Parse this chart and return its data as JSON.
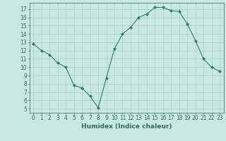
{
  "x": [
    0,
    1,
    2,
    3,
    4,
    5,
    6,
    7,
    8,
    9,
    10,
    11,
    12,
    13,
    14,
    15,
    16,
    17,
    18,
    19,
    20,
    21,
    22,
    23
  ],
  "y": [
    12.8,
    12.0,
    11.5,
    10.5,
    10.0,
    7.8,
    7.5,
    6.5,
    5.1,
    8.7,
    12.2,
    14.0,
    14.8,
    16.0,
    16.4,
    17.2,
    17.2,
    16.8,
    16.7,
    15.2,
    13.2,
    11.0,
    10.0,
    9.5
  ],
  "line_color": "#2d7d6e",
  "marker": "D",
  "marker_size": 2.0,
  "bg_color": "#c8e8e4",
  "grid_color": "#a8ccc8",
  "xlabel": "Humidex (Indice chaleur)",
  "xlim": [
    -0.5,
    23.5
  ],
  "ylim": [
    4.5,
    17.75
  ],
  "yticks": [
    5,
    6,
    7,
    8,
    9,
    10,
    11,
    12,
    13,
    14,
    15,
    16,
    17
  ],
  "xticks": [
    0,
    1,
    2,
    3,
    4,
    5,
    6,
    7,
    8,
    9,
    10,
    11,
    12,
    13,
    14,
    15,
    16,
    17,
    18,
    19,
    20,
    21,
    22,
    23
  ],
  "tick_color": "#2d6b5e",
  "label_fontsize": 6.5,
  "tick_fontsize": 5.5
}
